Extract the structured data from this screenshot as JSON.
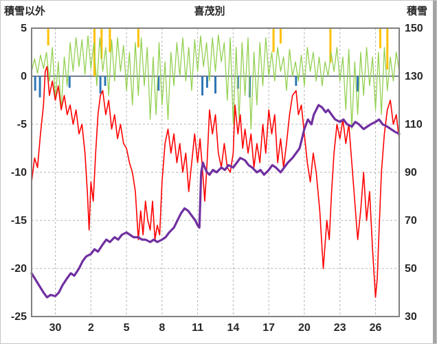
{
  "chart_data": {
    "type": "line",
    "title": "喜茂別",
    "left_axis": {
      "label": "積雪以外",
      "min": -25,
      "max": 5,
      "ticks": [
        5,
        0,
        -5,
        -10,
        -15,
        -20,
        -25
      ]
    },
    "right_axis": {
      "label": "積雪",
      "min": 30,
      "max": 150,
      "ticks": [
        150,
        130,
        110,
        90,
        70,
        50,
        30
      ]
    },
    "x_axis": {
      "domain": [
        0,
        31
      ],
      "tick_days": [
        2,
        5,
        8,
        11,
        14,
        17,
        20,
        23,
        26,
        29
      ],
      "tick_labels": [
        "30",
        "2",
        "5",
        "8",
        "11",
        "14",
        "17",
        "20",
        "23",
        "26"
      ]
    },
    "grid": true,
    "legend": "none",
    "colors": {
      "red": "#FF0000",
      "purple": "#7030A0",
      "green": "#92D050",
      "orange": "#FFC000",
      "blue": "#2E75B6",
      "grid": "#b3b3b3",
      "frame": "#808080",
      "zero_line": "#44546A",
      "text": "#262626"
    },
    "series": [
      {
        "name": "orange-top-spikes",
        "axis": "left",
        "type": "bar-from-top",
        "color": "#FFC000",
        "points": [
          [
            1.4,
            3.2
          ],
          [
            5.3,
            0
          ],
          [
            5.9,
            1.8
          ],
          [
            6.6,
            2.5
          ],
          [
            9,
            3
          ],
          [
            20.4,
            2.5
          ],
          [
            21,
            3.4
          ],
          [
            25.2,
            1.4
          ],
          [
            29.4,
            2.9
          ],
          [
            30,
            0.7
          ]
        ]
      },
      {
        "name": "blue-bottom-bars",
        "axis": "left",
        "type": "bar-from-zero",
        "color": "#2E75B6",
        "points": [
          [
            0.3,
            -1.5
          ],
          [
            0.7,
            -2.2
          ],
          [
            3.2,
            -1.2
          ],
          [
            5.8,
            -1.8
          ],
          [
            6.2,
            -1
          ],
          [
            10.7,
            -1.5
          ],
          [
            14.4,
            -2
          ],
          [
            14.8,
            -1.2
          ],
          [
            15.5,
            -1.8
          ],
          [
            17.4,
            -1.3
          ],
          [
            18.4,
            -2.2
          ],
          [
            22.3,
            -1
          ],
          [
            27.5,
            -1.6
          ]
        ]
      },
      {
        "name": "green-oscillation-line",
        "axis": "left",
        "type": "line",
        "color": "#92D050",
        "width": 1.3,
        "x0": 0,
        "dx": 0.25,
        "y": [
          0.5,
          1.8,
          0.3,
          2.2,
          0.8,
          2.5,
          -0.5,
          3,
          -2.5,
          1.5,
          -3.5,
          2,
          -1,
          3.5,
          0.5,
          4,
          1,
          3.8,
          0.2,
          4.2,
          0.8,
          3.5,
          -1,
          4,
          0.5,
          3,
          -2,
          3.8,
          -0.5,
          4,
          0.5,
          3.2,
          -1.5,
          2.5,
          -3,
          3.5,
          -2,
          4,
          -1,
          3,
          -4.5,
          2,
          -4,
          3.5,
          -3,
          1.5,
          -4.5,
          2.5,
          -1,
          3.5,
          0,
          4,
          -0.5,
          3,
          -1.5,
          3.8,
          0.5,
          4.2,
          1,
          3.5,
          -0.5,
          4,
          0.5,
          4.3,
          1.5,
          3.5,
          -2.5,
          4,
          -5,
          3,
          -4.5,
          3.5,
          -2,
          4,
          -5.5,
          2.5,
          -3,
          3.5,
          -1,
          4,
          0,
          2.5,
          -0.5,
          3,
          0.5,
          2,
          -1.5,
          2.8,
          0,
          1.5,
          -0.5,
          2.2,
          -1,
          3,
          0.5,
          2.5,
          -0.5,
          2,
          -1,
          1.5,
          0,
          2.5,
          0.5,
          3,
          -0.5,
          2,
          -3.5,
          2.8,
          -5.5,
          1.5,
          -4,
          2.5,
          -2,
          3,
          -1,
          2,
          -3.5,
          2.5,
          -4,
          3,
          -1.5,
          2,
          -0.5,
          2.5,
          0.5
        ]
      },
      {
        "name": "red-temperature-line",
        "axis": "left",
        "type": "line",
        "color": "#FF0000",
        "width": 1.6,
        "x": [
          0,
          0.25,
          0.5,
          0.75,
          1,
          1.15,
          1.3,
          1.5,
          1.75,
          2,
          2.25,
          2.5,
          2.75,
          3,
          3.25,
          3.5,
          3.75,
          4,
          4.25,
          4.5,
          4.7,
          4.85,
          5,
          5.2,
          5.4,
          5.6,
          5.8,
          6,
          6.25,
          6.5,
          6.75,
          7,
          7.25,
          7.5,
          7.75,
          8,
          8.25,
          8.5,
          8.75,
          9,
          9.2,
          9.4,
          9.6,
          9.8,
          10,
          10.2,
          10.4,
          10.6,
          10.8,
          11,
          11.25,
          11.5,
          11.75,
          12,
          12.25,
          12.5,
          12.75,
          13,
          13.25,
          13.5,
          13.75,
          14,
          14.2,
          14.4,
          14.6,
          14.8,
          15,
          15.25,
          15.5,
          15.75,
          16,
          16.25,
          16.5,
          16.75,
          17,
          17.15,
          17.4,
          17.6,
          17.8,
          18,
          18.25,
          18.5,
          18.75,
          19,
          19.25,
          19.5,
          19.75,
          20,
          20.25,
          20.5,
          20.75,
          21,
          21.25,
          21.5,
          21.75,
          22,
          22.3,
          22.5,
          22.75,
          23,
          23.25,
          23.5,
          23.75,
          24,
          24.3,
          24.6,
          24.9,
          25.1,
          25.3,
          25.5,
          25.75,
          26,
          26.25,
          26.5,
          26.75,
          27,
          27.25,
          27.5,
          27.75,
          28,
          28.25,
          28.5,
          28.75,
          29,
          29.15,
          29.3,
          29.5,
          29.75,
          30,
          30.25,
          30.5,
          30.75,
          31
        ],
        "y": [
          -11,
          -8.5,
          -9.5,
          -6,
          -3,
          0.5,
          1,
          -2,
          -0.5,
          -2.5,
          -1,
          -3.5,
          -2,
          -4,
          -3,
          -5,
          -3.5,
          -6,
          -5,
          -8,
          -12,
          -16,
          -11,
          -13,
          -8,
          -4,
          -2,
          -1.5,
          -4,
          -2.5,
          -5.5,
          -4,
          -6.5,
          -5,
          -7,
          -7.5,
          -9,
          -10,
          -12,
          -17,
          -14,
          -16.5,
          -13,
          -15,
          -16,
          -13,
          -17,
          -15.5,
          -16.5,
          -11,
          -7,
          -5.5,
          -8,
          -6,
          -9,
          -7,
          -10,
          -8,
          -12,
          -9,
          -6,
          -9,
          -6.5,
          -9.5,
          -13,
          -9,
          -3.5,
          -6,
          -4,
          -8,
          -9.5,
          -7,
          -9.5,
          -10,
          -8,
          -3,
          -6,
          -4,
          -7.5,
          -5.5,
          -8,
          -6,
          -9.5,
          -7,
          -9,
          -5,
          -8,
          -3.5,
          -6,
          -4,
          -9,
          -6.5,
          -9.5,
          -7,
          -4,
          -2,
          -1.5,
          -4,
          -3,
          -6,
          -9,
          -11,
          -8,
          -10,
          -14,
          -20,
          -15,
          -17,
          -12,
          -8,
          -5,
          -6.5,
          -4.5,
          -7,
          -5,
          -9,
          -13,
          -17,
          -14,
          -10,
          -15,
          -12,
          -18,
          -23,
          -21,
          -16,
          -10,
          -6,
          -3.5,
          -2.5,
          -5,
          -4,
          -6.5
        ]
      },
      {
        "name": "purple-snow-depth-line",
        "axis": "right",
        "type": "line",
        "color": "#7030A0",
        "width": 3.2,
        "x": [
          0,
          0.5,
          1,
          1.3,
          1.6,
          2,
          2.3,
          2.6,
          3,
          3.3,
          3.6,
          4,
          4.3,
          4.6,
          5,
          5.3,
          5.6,
          6,
          6.3,
          6.6,
          7,
          7.3,
          7.6,
          8,
          8.3,
          8.6,
          9,
          9.3,
          9.6,
          10,
          10.3,
          10.6,
          11,
          11.3,
          11.6,
          12,
          12.3,
          12.6,
          12.9,
          13.2,
          13.5,
          13.8,
          14,
          14.15,
          14.3,
          14.45,
          14.6,
          14.8,
          15,
          15.3,
          15.6,
          16,
          16.3,
          16.6,
          17,
          17.3,
          17.6,
          18,
          18.3,
          18.6,
          19,
          19.3,
          19.6,
          20,
          20.3,
          20.6,
          21,
          21.3,
          21.6,
          22,
          22.3,
          22.6,
          22.8,
          23,
          23.3,
          23.6,
          23.8,
          24,
          24.2,
          24.5,
          24.8,
          25,
          25.3,
          25.6,
          26,
          26.3,
          26.6,
          27,
          27.3,
          27.6,
          28,
          28.3,
          28.6,
          29,
          29.3,
          29.6,
          30,
          30.3,
          30.6,
          31
        ],
        "y": [
          48,
          44,
          40,
          38,
          39,
          38.5,
          40,
          43,
          46,
          48,
          47,
          50,
          53,
          55,
          56,
          58,
          57,
          60,
          62,
          61,
          63,
          62,
          64,
          65,
          64,
          63,
          63,
          62,
          62,
          61,
          62,
          61,
          62,
          63,
          65,
          67,
          70,
          73,
          75,
          74,
          72,
          70,
          68,
          67,
          90,
          94,
          92,
          90,
          89,
          91,
          90,
          92,
          91,
          93,
          92,
          94,
          96,
          95,
          93,
          92,
          90,
          91,
          89,
          91,
          93,
          92,
          90,
          92,
          94,
          96,
          98,
          100,
          104,
          108,
          112,
          110,
          114,
          116,
          118,
          117,
          115,
          116,
          114,
          112,
          111,
          112,
          110,
          109,
          111,
          110,
          108,
          109,
          110,
          111,
          112,
          110,
          109,
          108,
          107,
          106
        ]
      }
    ]
  }
}
